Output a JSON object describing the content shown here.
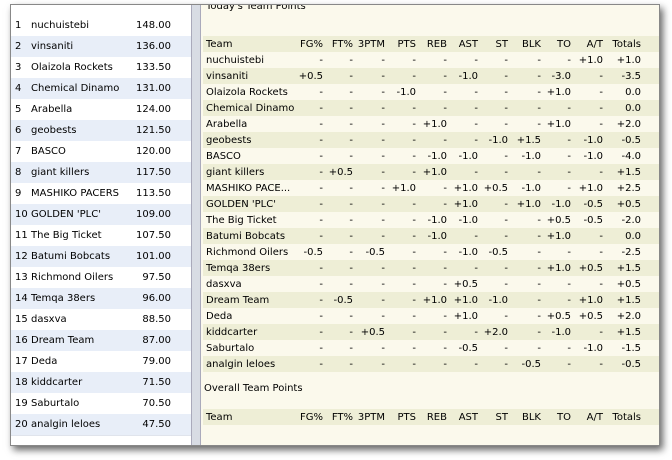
{
  "standings": {
    "rows": [
      [
        "1",
        "nuchuistebi",
        "148.00"
      ],
      [
        "2",
        "vinsaniti",
        "136.00"
      ],
      [
        "3",
        "Olaizola Rockets",
        "133.50"
      ],
      [
        "4",
        "Chemical Dinamo",
        "131.00"
      ],
      [
        "5",
        "Arabella",
        "124.00"
      ],
      [
        "6",
        "geobests",
        "121.50"
      ],
      [
        "7",
        "BASCO",
        "120.00"
      ],
      [
        "8",
        "giant killers",
        "117.50"
      ],
      [
        "9",
        "MASHIKO PACERS",
        "113.50"
      ],
      [
        "10",
        "GOLDEN 'PLC'",
        "109.00"
      ],
      [
        "11",
        "The Big Ticket",
        "107.50"
      ],
      [
        "12",
        "Batumi Bobcats",
        "101.00"
      ],
      [
        "13",
        "Richmond Oilers",
        "97.50"
      ],
      [
        "14",
        "Temqa 38ers",
        "96.00"
      ],
      [
        "15",
        "dasxva",
        "88.50"
      ],
      [
        "16",
        "Dream Team",
        "87.00"
      ],
      [
        "17",
        "Deda",
        "79.00"
      ],
      [
        "18",
        "kiddcarter",
        "71.50"
      ],
      [
        "19",
        "Saburtalo",
        "70.50"
      ],
      [
        "20",
        "analgin leloes",
        "47.50"
      ]
    ]
  },
  "today": {
    "title": "Today's Team Points",
    "header": [
      "Team",
      "FG%",
      "FT%",
      "3PTM",
      "PTS",
      "REB",
      "AST",
      "ST",
      "BLK",
      "TO",
      "A/T",
      "Totals"
    ],
    "rows": [
      [
        "nuchuistebi",
        "-",
        "-",
        "-",
        "-",
        "-",
        "-",
        "-",
        "-",
        "-",
        "+1.0",
        "+1.0"
      ],
      [
        "vinsaniti",
        "+0.5",
        "-",
        "-",
        "-",
        "-",
        "-1.0",
        "-",
        "-",
        "-3.0",
        "-",
        "-3.5"
      ],
      [
        "Olaizola Rockets",
        "-",
        "-",
        "-",
        "-1.0",
        "-",
        "-",
        "-",
        "-",
        "+1.0",
        "-",
        "0.0"
      ],
      [
        "Chemical Dinamo",
        "-",
        "-",
        "-",
        "-",
        "-",
        "-",
        "-",
        "-",
        "-",
        "-",
        "0.0"
      ],
      [
        "Arabella",
        "-",
        "-",
        "-",
        "-",
        "+1.0",
        "-",
        "-",
        "-",
        "+1.0",
        "-",
        "+2.0"
      ],
      [
        "geobests",
        "-",
        "-",
        "-",
        "-",
        "-",
        "-",
        "-1.0",
        "+1.5",
        "-",
        "-1.0",
        "-0.5"
      ],
      [
        "BASCO",
        "-",
        "-",
        "-",
        "-",
        "-1.0",
        "-1.0",
        "-",
        "-1.0",
        "-",
        "-1.0",
        "-4.0"
      ],
      [
        "giant killers",
        "-",
        "+0.5",
        "-",
        "-",
        "+1.0",
        "-",
        "-",
        "-",
        "-",
        "-",
        "+1.5"
      ],
      [
        "MASHIKO PACE...",
        "-",
        "-",
        "-",
        "+1.0",
        "-",
        "+1.0",
        "+0.5",
        "-1.0",
        "-",
        "+1.0",
        "+2.5"
      ],
      [
        "GOLDEN 'PLC'",
        "-",
        "-",
        "-",
        "-",
        "-",
        "+1.0",
        "-",
        "+1.0",
        "-1.0",
        "-0.5",
        "+0.5"
      ],
      [
        "The Big Ticket",
        "-",
        "-",
        "-",
        "-",
        "-1.0",
        "-1.0",
        "-",
        "-",
        "+0.5",
        "-0.5",
        "-2.0"
      ],
      [
        "Batumi Bobcats",
        "-",
        "-",
        "-",
        "-",
        "-1.0",
        "-",
        "-",
        "-",
        "+1.0",
        "-",
        "0.0"
      ],
      [
        "Richmond Oilers",
        "-0.5",
        "-",
        "-0.5",
        "-",
        "-",
        "-1.0",
        "-0.5",
        "-",
        "-",
        "-",
        "-2.5"
      ],
      [
        "Temqa 38ers",
        "-",
        "-",
        "-",
        "-",
        "-",
        "-",
        "-",
        "-",
        "+1.0",
        "+0.5",
        "+1.5"
      ],
      [
        "dasxva",
        "-",
        "-",
        "-",
        "-",
        "-",
        "+0.5",
        "-",
        "-",
        "-",
        "-",
        "+0.5"
      ],
      [
        "Dream Team",
        "-",
        "-0.5",
        "-",
        "-",
        "+1.0",
        "+1.0",
        "-1.0",
        "-",
        "-",
        "+1.0",
        "+1.5"
      ],
      [
        "Deda",
        "-",
        "-",
        "-",
        "-",
        "-",
        "+1.0",
        "-",
        "-",
        "+0.5",
        "+0.5",
        "+2.0"
      ],
      [
        "kiddcarter",
        "-",
        "-",
        "+0.5",
        "-",
        "-",
        "-",
        "+2.0",
        "-",
        "-1.0",
        "-",
        "+1.5"
      ],
      [
        "Saburtalo",
        "-",
        "-",
        "-",
        "-",
        "-",
        "-0.5",
        "-",
        "-",
        "-",
        "-1.0",
        "-1.5"
      ],
      [
        "analgin leloes",
        "-",
        "-",
        "-",
        "-",
        "-",
        "-",
        "-",
        "-0.5",
        "-",
        "-",
        "-0.5"
      ]
    ]
  },
  "overall": {
    "title": "Overall Team Points",
    "header": [
      "Team",
      "FG%",
      "FT%",
      "3PTM",
      "PTS",
      "REB",
      "AST",
      "ST",
      "BLK",
      "TO",
      "A/T",
      "Totals"
    ]
  }
}
